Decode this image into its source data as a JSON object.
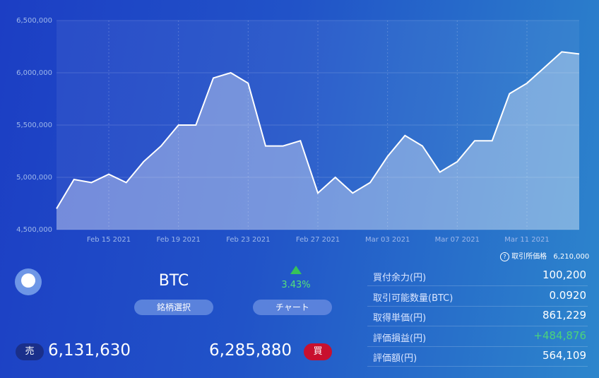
{
  "chart_data": {
    "type": "area",
    "x": [
      "2021-02-12",
      "2021-02-13",
      "2021-02-14",
      "2021-02-15",
      "2021-02-16",
      "2021-02-17",
      "2021-02-18",
      "2021-02-19",
      "2021-02-20",
      "2021-02-21",
      "2021-02-22",
      "2021-02-23",
      "2021-02-24",
      "2021-02-25",
      "2021-02-26",
      "2021-02-27",
      "2021-02-28",
      "2021-03-01",
      "2021-03-02",
      "2021-03-03",
      "2021-03-04",
      "2021-03-05",
      "2021-03-06",
      "2021-03-07",
      "2021-03-08",
      "2021-03-09",
      "2021-03-10",
      "2021-03-11",
      "2021-03-12",
      "2021-03-13",
      "2021-03-14"
    ],
    "values": [
      4700000,
      4980000,
      4950000,
      5030000,
      4950000,
      5150000,
      5300000,
      5500000,
      5500000,
      5950000,
      6000000,
      5900000,
      5300000,
      5300000,
      5350000,
      4850000,
      5000000,
      4850000,
      4950000,
      5200000,
      5400000,
      5300000,
      5050000,
      5150000,
      5350000,
      5350000,
      5800000,
      5900000,
      6050000,
      6200000,
      6180000
    ],
    "color": "#ffffff",
    "xlim": [
      "2021-02-12",
      "2021-03-14"
    ],
    "xticks": [
      {
        "value": "2021-02-15",
        "label": "Feb 15 2021"
      },
      {
        "value": "2021-02-19",
        "label": "Feb 19 2021"
      },
      {
        "value": "2021-02-23",
        "label": "Feb 23 2021"
      },
      {
        "value": "2021-02-27",
        "label": "Feb 27 2021"
      },
      {
        "value": "2021-03-03",
        "label": "Mar 03 2021"
      },
      {
        "value": "2021-03-07",
        "label": "Mar 07 2021"
      },
      {
        "value": "2021-03-11",
        "label": "Mar 11 2021"
      }
    ],
    "ylim": [
      4500000,
      6500000
    ],
    "yticks": [
      {
        "value": 4500000,
        "label": "4,500,000"
      },
      {
        "value": 5000000,
        "label": "5,000,000"
      },
      {
        "value": 5500000,
        "label": "5,500,000"
      },
      {
        "value": 6000000,
        "label": "6,000,000"
      },
      {
        "value": 6500000,
        "label": "6,500,000"
      }
    ],
    "grid": true
  },
  "exchange": {
    "icon": "?",
    "label": "取引所価格",
    "value": "6,210,000"
  },
  "coin": {
    "symbol": "BTC",
    "select": "銘柄選択",
    "chart": "チャート",
    "change": "3.43%"
  },
  "trade": {
    "sell_label": "売",
    "sell": "6,131,630",
    "buy": "6,285,880",
    "buy_label": "買"
  },
  "table": {
    "rows": [
      [
        "買付余力(円)",
        "100,200"
      ],
      [
        "取引可能数量(BTC)",
        "0.0920"
      ],
      [
        "取得単価(円)",
        "861,229"
      ],
      [
        "評価損益(円)",
        "+484,876"
      ],
      [
        "評価額(円)",
        "564,109"
      ]
    ]
  }
}
